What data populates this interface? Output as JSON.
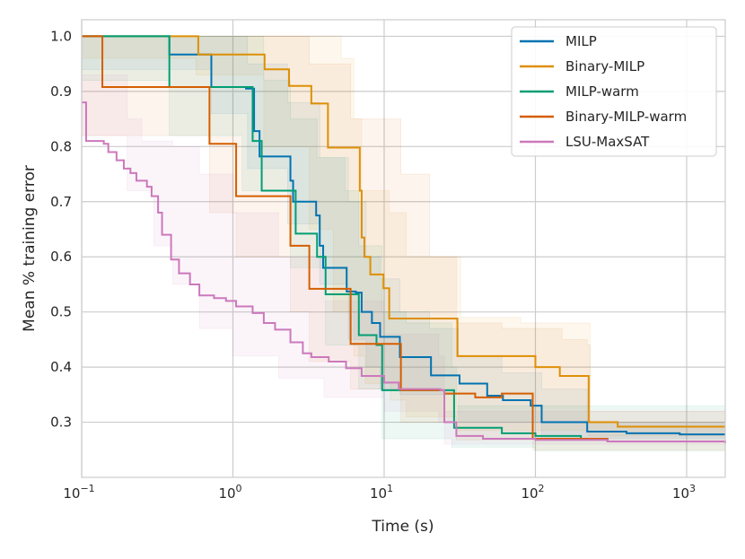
{
  "chart_data": {
    "type": "line",
    "step": true,
    "xscale": "log",
    "xlabel": "Time (s)",
    "ylabel": "Mean % training error",
    "xlim": [
      0.1,
      1800
    ],
    "ylim": [
      0.2,
      1.03
    ],
    "x_ticks": [
      {
        "value": 0.1,
        "base": "10",
        "exp": "−1"
      },
      {
        "value": 1,
        "base": "10",
        "exp": "0"
      },
      {
        "value": 10,
        "base": "10",
        "exp": "1"
      },
      {
        "value": 100,
        "base": "10",
        "exp": "2"
      },
      {
        "value": 1000,
        "base": "10",
        "exp": "3"
      }
    ],
    "y_ticks": [
      "1.0",
      "0.9",
      "0.8",
      "0.7",
      "0.6",
      "0.5",
      "0.4",
      "0.3"
    ],
    "grid": true,
    "legend_position": "top-right",
    "series": [
      {
        "name": "MILP",
        "color": "#0173b2",
        "points": [
          [
            0.1,
            1.0
          ],
          [
            0.38,
            0.967
          ],
          [
            0.72,
            0.908
          ],
          [
            1.15,
            0.908
          ],
          [
            1.22,
            0.905
          ],
          [
            1.38,
            0.828
          ],
          [
            1.5,
            0.782
          ],
          [
            2.15,
            0.782
          ],
          [
            2.4,
            0.738
          ],
          [
            2.5,
            0.7
          ],
          [
            3.25,
            0.7
          ],
          [
            3.55,
            0.675
          ],
          [
            3.75,
            0.62
          ],
          [
            3.95,
            0.58
          ],
          [
            5.1,
            0.58
          ],
          [
            5.65,
            0.537
          ],
          [
            6.5,
            0.535
          ],
          [
            7.1,
            0.5
          ],
          [
            8.3,
            0.48
          ],
          [
            9.4,
            0.455
          ],
          [
            12.7,
            0.418
          ],
          [
            18.5,
            0.418
          ],
          [
            20.4,
            0.385
          ],
          [
            31.5,
            0.37
          ],
          [
            48,
            0.348
          ],
          [
            61,
            0.34
          ],
          [
            93,
            0.33
          ],
          [
            110,
            0.3
          ],
          [
            220,
            0.283
          ],
          [
            400,
            0.28
          ],
          [
            900,
            0.278
          ],
          [
            1800,
            0.278
          ]
        ],
        "band_upper": [
          [
            0.1,
            1.0
          ],
          [
            0.72,
            1.0
          ],
          [
            1.25,
            0.95
          ],
          [
            2.3,
            0.88
          ],
          [
            3.75,
            0.78
          ],
          [
            5.8,
            0.7
          ],
          [
            7.6,
            0.6
          ],
          [
            9.4,
            0.56
          ],
          [
            12.7,
            0.5
          ],
          [
            20,
            0.47
          ],
          [
            31,
            0.42
          ],
          [
            60,
            0.39
          ],
          [
            110,
            0.36
          ],
          [
            220,
            0.3
          ],
          [
            1800,
            0.29
          ]
        ],
        "band_lower": [
          [
            0.1,
            0.94
          ],
          [
            0.72,
            0.86
          ],
          [
            1.25,
            0.76
          ],
          [
            2.3,
            0.66
          ],
          [
            3.75,
            0.55
          ],
          [
            5.8,
            0.45
          ],
          [
            7.6,
            0.4
          ],
          [
            9.4,
            0.36
          ],
          [
            12.7,
            0.35
          ],
          [
            20,
            0.35
          ],
          [
            31,
            0.3
          ],
          [
            110,
            0.27
          ],
          [
            1800,
            0.266
          ]
        ]
      },
      {
        "name": "Binary-MILP",
        "color": "#de8f05",
        "points": [
          [
            0.1,
            1.0
          ],
          [
            0.57,
            1.0
          ],
          [
            0.59,
            0.967
          ],
          [
            1.58,
            0.967
          ],
          [
            1.62,
            0.94
          ],
          [
            2.15,
            0.94
          ],
          [
            2.35,
            0.91
          ],
          [
            3.1,
            0.91
          ],
          [
            3.3,
            0.878
          ],
          [
            4.05,
            0.878
          ],
          [
            4.25,
            0.798
          ],
          [
            6.3,
            0.798
          ],
          [
            6.9,
            0.72
          ],
          [
            7.1,
            0.635
          ],
          [
            7.4,
            0.6
          ],
          [
            8.1,
            0.568
          ],
          [
            9.3,
            0.568
          ],
          [
            9.9,
            0.543
          ],
          [
            10.8,
            0.488
          ],
          [
            28.5,
            0.488
          ],
          [
            30.5,
            0.42
          ],
          [
            100,
            0.4
          ],
          [
            145,
            0.384
          ],
          [
            215,
            0.384
          ],
          [
            225,
            0.3
          ],
          [
            350,
            0.292
          ],
          [
            1800,
            0.292
          ]
        ],
        "band_upper": [
          [
            0.1,
            1.0
          ],
          [
            3.2,
            1.0
          ],
          [
            5.2,
            0.96
          ],
          [
            6.3,
            0.85
          ],
          [
            7.1,
            0.72
          ],
          [
            10.8,
            0.68
          ],
          [
            14,
            0.6
          ],
          [
            26,
            0.6
          ],
          [
            32,
            0.49
          ],
          [
            80,
            0.48
          ],
          [
            225,
            0.48
          ],
          [
            230,
            0.32
          ],
          [
            1800,
            0.3
          ]
        ],
        "band_lower": [
          [
            0.1,
            0.96
          ],
          [
            0.57,
            0.93
          ],
          [
            1.6,
            0.8
          ],
          [
            3.2,
            0.65
          ],
          [
            4.6,
            0.5
          ],
          [
            6.3,
            0.42
          ],
          [
            7.5,
            0.37
          ],
          [
            11,
            0.34
          ],
          [
            14,
            0.31
          ],
          [
            30,
            0.285
          ],
          [
            225,
            0.275
          ],
          [
            1800,
            0.27
          ]
        ]
      },
      {
        "name": "MILP-warm",
        "color": "#029e73",
        "points": [
          [
            0.1,
            1.0
          ],
          [
            0.37,
            1.0
          ],
          [
            0.38,
            0.908
          ],
          [
            1.15,
            0.908
          ],
          [
            1.35,
            0.81
          ],
          [
            1.55,
            0.72
          ],
          [
            2.4,
            0.72
          ],
          [
            2.6,
            0.642
          ],
          [
            3.45,
            0.642
          ],
          [
            3.6,
            0.6
          ],
          [
            4.1,
            0.532
          ],
          [
            6.3,
            0.532
          ],
          [
            6.8,
            0.458
          ],
          [
            8.3,
            0.458
          ],
          [
            8.9,
            0.44
          ],
          [
            9.7,
            0.358
          ],
          [
            28,
            0.358
          ],
          [
            29,
            0.29
          ],
          [
            40,
            0.29
          ],
          [
            60,
            0.28
          ],
          [
            100,
            0.275
          ],
          [
            200,
            0.27
          ],
          [
            300,
            0.265
          ],
          [
            1800,
            0.265
          ]
        ],
        "band_upper": [
          [
            0.1,
            1.0
          ],
          [
            1.35,
            1.0
          ],
          [
            1.6,
            0.92
          ],
          [
            2.4,
            0.85
          ],
          [
            3.6,
            0.78
          ],
          [
            5.5,
            0.72
          ],
          [
            6.8,
            0.62
          ],
          [
            9.7,
            0.5
          ],
          [
            14,
            0.48
          ],
          [
            28,
            0.4
          ],
          [
            30,
            0.33
          ],
          [
            1800,
            0.3
          ]
        ],
        "band_lower": [
          [
            0.1,
            0.92
          ],
          [
            0.38,
            0.82
          ],
          [
            1.15,
            0.72
          ],
          [
            2.4,
            0.58
          ],
          [
            4.1,
            0.44
          ],
          [
            6.8,
            0.36
          ],
          [
            9.7,
            0.27
          ],
          [
            28,
            0.255
          ],
          [
            100,
            0.248
          ],
          [
            1800,
            0.245
          ]
        ]
      },
      {
        "name": "Binary-MILP-warm",
        "color": "#d55e00",
        "points": [
          [
            0.1,
            1.0
          ],
          [
            0.133,
            1.0
          ],
          [
            0.137,
            0.908
          ],
          [
            0.65,
            0.908
          ],
          [
            0.7,
            0.805
          ],
          [
            1.0,
            0.805
          ],
          [
            1.05,
            0.71
          ],
          [
            2.25,
            0.71
          ],
          [
            2.4,
            0.62
          ],
          [
            3.05,
            0.62
          ],
          [
            3.2,
            0.542
          ],
          [
            5.8,
            0.542
          ],
          [
            6.0,
            0.442
          ],
          [
            12.2,
            0.442
          ],
          [
            12.9,
            0.358
          ],
          [
            23,
            0.358
          ],
          [
            25,
            0.352
          ],
          [
            40,
            0.345
          ],
          [
            60,
            0.352
          ],
          [
            94,
            0.352
          ],
          [
            96,
            0.27
          ],
          [
            300,
            0.265
          ],
          [
            1800,
            0.262
          ]
        ],
        "band_upper": [
          [
            0.1,
            1.0
          ],
          [
            2.3,
            1.0
          ],
          [
            3.2,
            0.95
          ],
          [
            6,
            0.85
          ],
          [
            12.9,
            0.75
          ],
          [
            20,
            0.6
          ],
          [
            28,
            0.6
          ],
          [
            30,
            0.48
          ],
          [
            60,
            0.47
          ],
          [
            150,
            0.45
          ],
          [
            220,
            0.44
          ],
          [
            230,
            0.3
          ],
          [
            1800,
            0.29
          ]
        ],
        "band_lower": [
          [
            0.1,
            0.82
          ],
          [
            0.7,
            0.68
          ],
          [
            1.05,
            0.6
          ],
          [
            2.4,
            0.5
          ],
          [
            3.2,
            0.41
          ],
          [
            6,
            0.36
          ],
          [
            12.9,
            0.3
          ],
          [
            30,
            0.268
          ],
          [
            96,
            0.25
          ],
          [
            1800,
            0.24
          ]
        ]
      },
      {
        "name": "LSU-MaxSAT",
        "color": "#cc78bc",
        "points": [
          [
            0.1,
            0.88
          ],
          [
            0.107,
            0.81
          ],
          [
            0.14,
            0.805
          ],
          [
            0.15,
            0.79
          ],
          [
            0.17,
            0.775
          ],
          [
            0.19,
            0.76
          ],
          [
            0.21,
            0.752
          ],
          [
            0.23,
            0.738
          ],
          [
            0.27,
            0.727
          ],
          [
            0.29,
            0.71
          ],
          [
            0.32,
            0.68
          ],
          [
            0.34,
            0.64
          ],
          [
            0.39,
            0.595
          ],
          [
            0.44,
            0.57
          ],
          [
            0.52,
            0.55
          ],
          [
            0.6,
            0.53
          ],
          [
            0.75,
            0.525
          ],
          [
            0.9,
            0.52
          ],
          [
            1.05,
            0.51
          ],
          [
            1.35,
            0.498
          ],
          [
            1.6,
            0.48
          ],
          [
            1.9,
            0.468
          ],
          [
            2.4,
            0.445
          ],
          [
            2.9,
            0.425
          ],
          [
            3.3,
            0.418
          ],
          [
            4.3,
            0.41
          ],
          [
            5.6,
            0.398
          ],
          [
            7.1,
            0.384
          ],
          [
            10,
            0.372
          ],
          [
            12.5,
            0.36
          ],
          [
            23.5,
            0.358
          ],
          [
            25,
            0.3
          ],
          [
            30,
            0.275
          ],
          [
            45,
            0.27
          ],
          [
            100,
            0.268
          ],
          [
            300,
            0.265
          ],
          [
            1800,
            0.263
          ]
        ],
        "band_upper": [
          [
            0.1,
            0.93
          ],
          [
            0.2,
            0.85
          ],
          [
            0.25,
            0.81
          ],
          [
            0.4,
            0.8
          ],
          [
            0.6,
            0.75
          ],
          [
            1,
            0.68
          ],
          [
            2,
            0.6
          ],
          [
            4,
            0.52
          ],
          [
            10,
            0.46
          ],
          [
            23,
            0.42
          ],
          [
            25,
            0.32
          ],
          [
            1800,
            0.3
          ]
        ],
        "band_lower": [
          [
            0.1,
            0.82
          ],
          [
            0.2,
            0.72
          ],
          [
            0.3,
            0.62
          ],
          [
            0.4,
            0.55
          ],
          [
            0.6,
            0.47
          ],
          [
            1,
            0.42
          ],
          [
            2,
            0.38
          ],
          [
            4,
            0.345
          ],
          [
            10,
            0.32
          ],
          [
            23,
            0.3
          ],
          [
            25,
            0.26
          ],
          [
            1800,
            0.25
          ]
        ]
      }
    ]
  }
}
